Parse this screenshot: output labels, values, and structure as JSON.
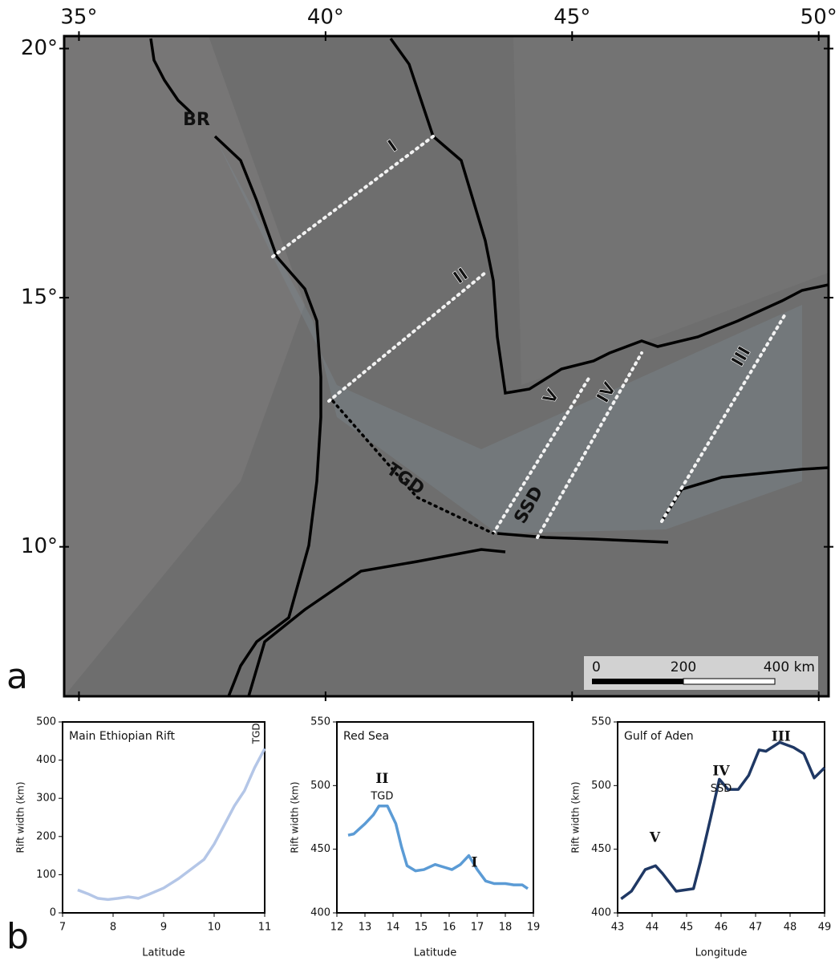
{
  "map": {
    "xlim": [
      34.7,
      50.2
    ],
    "ylim": [
      7.0,
      20.25
    ],
    "xticks": [
      {
        "value": 35,
        "label": "35°"
      },
      {
        "value": 40,
        "label": "40°"
      },
      {
        "value": 45,
        "label": "45°"
      },
      {
        "value": 50,
        "label": "50°"
      }
    ],
    "yticks": [
      {
        "value": 10,
        "label": "10°"
      },
      {
        "value": 15,
        "label": "15°"
      },
      {
        "value": 20,
        "label": "20°"
      }
    ],
    "labels": [
      "BR",
      "I",
      "II",
      "III",
      "IV",
      "V",
      "TGD",
      "SSD"
    ],
    "scale_bar": [
      "0",
      "200",
      "400 km"
    ]
  },
  "panels": [
    "a",
    "b"
  ],
  "chart_data": [
    {
      "type": "line",
      "title": "Main Ethiopian Rift",
      "xlabel": "Latitude",
      "ylabel": "Rift width (km)",
      "x": [
        7.3,
        7.5,
        7.7,
        7.9,
        8.1,
        8.3,
        8.5,
        8.7,
        9.0,
        9.3,
        9.6,
        9.8,
        10.0,
        10.2,
        10.4,
        10.6,
        10.8,
        11.0
      ],
      "values": [
        60,
        50,
        38,
        35,
        38,
        42,
        38,
        48,
        65,
        90,
        120,
        140,
        180,
        230,
        280,
        320,
        380,
        430
      ],
      "color": "#b4c6e7",
      "xlim": [
        7,
        11
      ],
      "xticks": [
        7,
        8,
        9,
        10,
        11
      ],
      "ylim": [
        0,
        500
      ],
      "yticks": [
        0,
        100,
        200,
        300,
        400,
        500
      ],
      "annotations": [
        "TGD"
      ]
    },
    {
      "type": "line",
      "title": "Red Sea",
      "xlabel": "Latitude",
      "ylabel": "Rift width (km)",
      "x": [
        12.4,
        12.6,
        13.0,
        13.3,
        13.5,
        13.8,
        14.1,
        14.3,
        14.5,
        14.8,
        15.1,
        15.5,
        15.8,
        16.1,
        16.4,
        16.7,
        17.0,
        17.3,
        17.6,
        18.0,
        18.3,
        18.6,
        18.8
      ],
      "values": [
        461,
        462,
        470,
        477,
        484,
        484,
        470,
        452,
        437,
        433,
        434,
        438,
        436,
        434,
        438,
        445,
        434,
        425,
        423,
        423,
        422,
        422,
        419
      ],
      "color": "#5b9bd5",
      "xlim": [
        12,
        19
      ],
      "xticks": [
        12,
        13,
        14,
        15,
        16,
        17,
        18,
        19
      ],
      "ylim": [
        400,
        550
      ],
      "yticks": [
        400,
        450,
        500,
        550
      ],
      "annotations": [
        "II",
        "TGD",
        "I"
      ]
    },
    {
      "type": "line",
      "title": "Gulf of Aden",
      "xlabel": "Longitude",
      "ylabel": "Rift width (km)",
      "x": [
        43.1,
        43.4,
        43.8,
        44.1,
        44.3,
        44.7,
        45.2,
        45.4,
        45.7,
        45.95,
        46.2,
        46.5,
        46.8,
        47.1,
        47.3,
        47.7,
        48.1,
        48.4,
        48.7,
        49.0
      ],
      "values": [
        411,
        417,
        434,
        437,
        431,
        417,
        419,
        440,
        475,
        505,
        497,
        497,
        508,
        528,
        527,
        534,
        530,
        525,
        506,
        514
      ],
      "color": "#1f3864",
      "xlim": [
        43,
        49
      ],
      "xticks": [
        43,
        44,
        45,
        46,
        47,
        48,
        49
      ],
      "ylim": [
        400,
        550
      ],
      "yticks": [
        400,
        450,
        500,
        550
      ],
      "annotations": [
        "V",
        "IV",
        "SSD",
        "III"
      ]
    }
  ]
}
